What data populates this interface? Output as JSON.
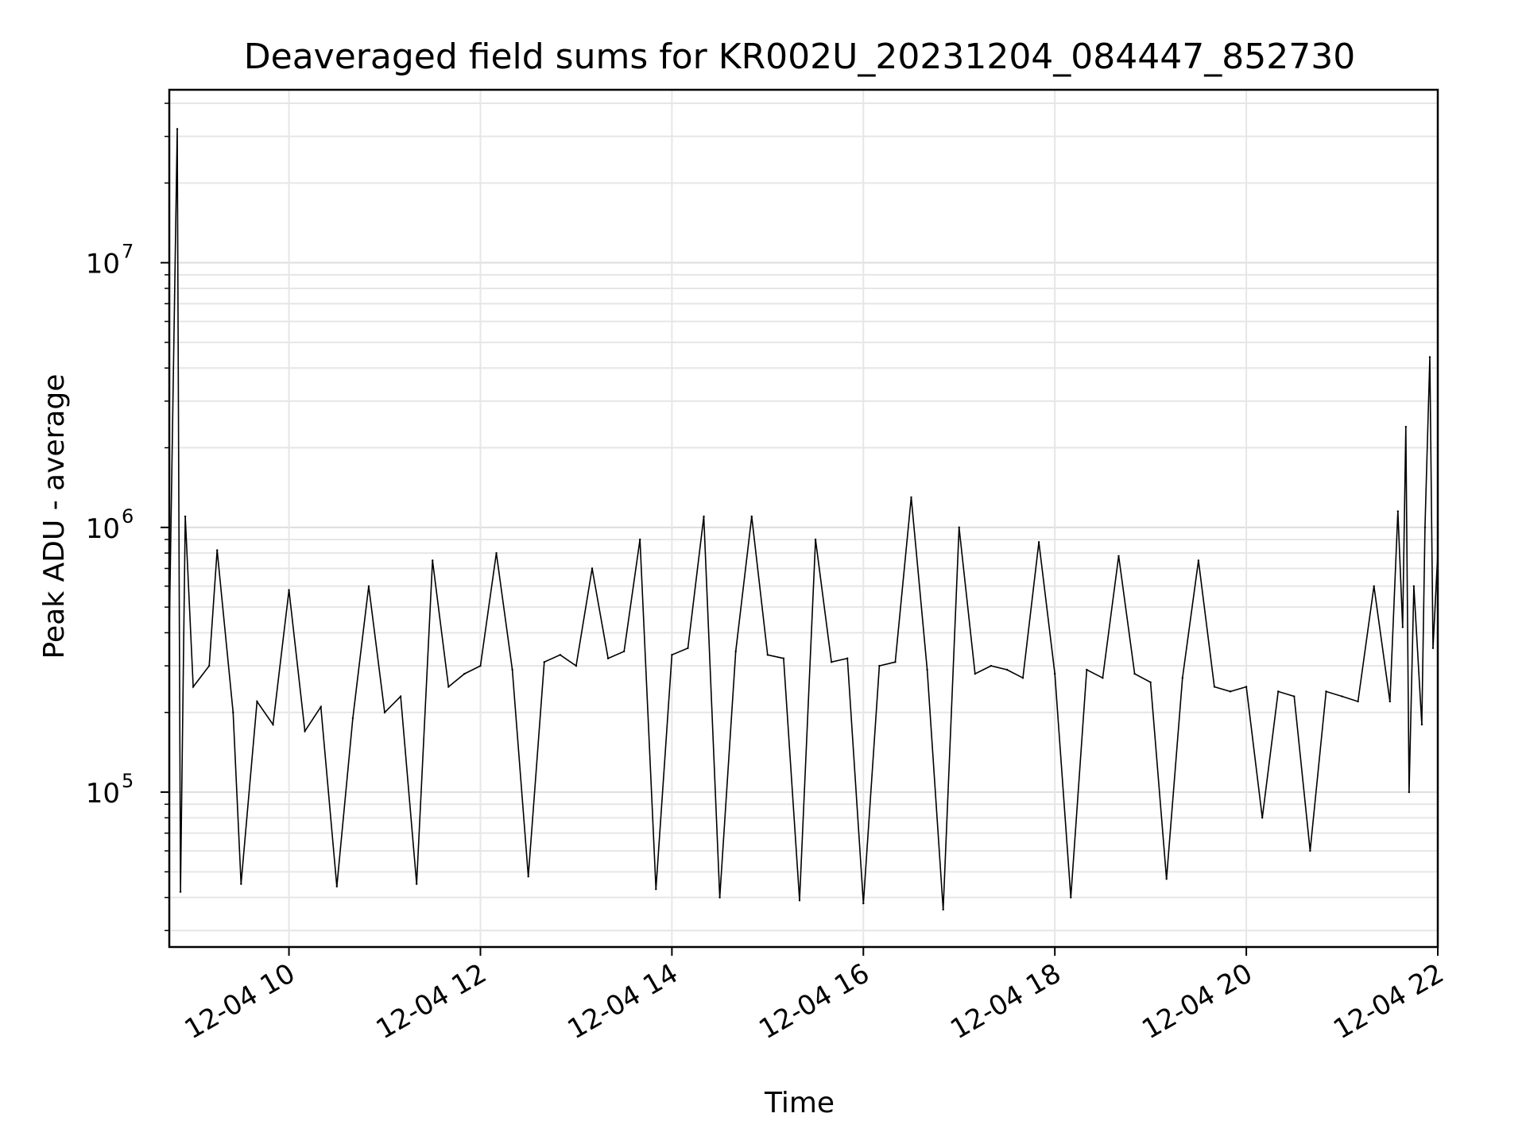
{
  "chart_data": {
    "type": "line",
    "title": "Deaveraged field sums for KR002U_20231204_084447_852730",
    "xlabel": "Time",
    "ylabel": "Peak ADU - average",
    "xlim": [
      "2023-12-04 08:45",
      "2023-12-04 22:00"
    ],
    "ylim": [
      26000,
      45000000
    ],
    "y_scale": "log",
    "grid": true,
    "legend": "none",
    "x_ticks": [
      {
        "value": "2023-12-04 10:00",
        "label": "12-04 10"
      },
      {
        "value": "2023-12-04 12:00",
        "label": "12-04 12"
      },
      {
        "value": "2023-12-04 14:00",
        "label": "12-04 14"
      },
      {
        "value": "2023-12-04 16:00",
        "label": "12-04 16"
      },
      {
        "value": "2023-12-04 18:00",
        "label": "12-04 18"
      },
      {
        "value": "2023-12-04 20:00",
        "label": "12-04 20"
      },
      {
        "value": "2023-12-04 22:00",
        "label": "12-04 22"
      }
    ],
    "y_ticks": [
      {
        "value": 100000,
        "base": "10",
        "exp": "5"
      },
      {
        "value": 1000000,
        "base": "10",
        "exp": "6"
      },
      {
        "value": 10000000,
        "base": "10",
        "exp": "7"
      }
    ],
    "series": [
      {
        "color": "#000000",
        "points": [
          [
            "2023-12-04 08:45",
            400000
          ],
          [
            "2023-12-04 08:50",
            32000000
          ],
          [
            "2023-12-04 08:52",
            42000
          ],
          [
            "2023-12-04 08:55",
            1100000
          ],
          [
            "2023-12-04 09:00",
            250000
          ],
          [
            "2023-12-04 09:10",
            300000
          ],
          [
            "2023-12-04 09:15",
            820000
          ],
          [
            "2023-12-04 09:25",
            200000
          ],
          [
            "2023-12-04 09:30",
            45000
          ],
          [
            "2023-12-04 09:40",
            220000
          ],
          [
            "2023-12-04 09:50",
            180000
          ],
          [
            "2023-12-04 10:00",
            580000
          ],
          [
            "2023-12-04 10:10",
            170000
          ],
          [
            "2023-12-04 10:20",
            210000
          ],
          [
            "2023-12-04 10:30",
            44000
          ],
          [
            "2023-12-04 10:40",
            190000
          ],
          [
            "2023-12-04 10:50",
            600000
          ],
          [
            "2023-12-04 11:00",
            200000
          ],
          [
            "2023-12-04 11:10",
            230000
          ],
          [
            "2023-12-04 11:20",
            45000
          ],
          [
            "2023-12-04 11:30",
            750000
          ],
          [
            "2023-12-04 11:40",
            250000
          ],
          [
            "2023-12-04 11:50",
            280000
          ],
          [
            "2023-12-04 12:00",
            300000
          ],
          [
            "2023-12-04 12:10",
            800000
          ],
          [
            "2023-12-04 12:20",
            290000
          ],
          [
            "2023-12-04 12:30",
            48000
          ],
          [
            "2023-12-04 12:40",
            310000
          ],
          [
            "2023-12-04 12:50",
            330000
          ],
          [
            "2023-12-04 13:00",
            300000
          ],
          [
            "2023-12-04 13:10",
            700000
          ],
          [
            "2023-12-04 13:20",
            320000
          ],
          [
            "2023-12-04 13:30",
            340000
          ],
          [
            "2023-12-04 13:40",
            900000
          ],
          [
            "2023-12-04 13:50",
            43000
          ],
          [
            "2023-12-04 14:00",
            330000
          ],
          [
            "2023-12-04 14:10",
            350000
          ],
          [
            "2023-12-04 14:20",
            1100000
          ],
          [
            "2023-12-04 14:30",
            40000
          ],
          [
            "2023-12-04 14:40",
            340000
          ],
          [
            "2023-12-04 14:50",
            1100000
          ],
          [
            "2023-12-04 15:00",
            330000
          ],
          [
            "2023-12-04 15:10",
            320000
          ],
          [
            "2023-12-04 15:20",
            39000
          ],
          [
            "2023-12-04 15:30",
            900000
          ],
          [
            "2023-12-04 15:40",
            310000
          ],
          [
            "2023-12-04 15:50",
            320000
          ],
          [
            "2023-12-04 16:00",
            38000
          ],
          [
            "2023-12-04 16:10",
            300000
          ],
          [
            "2023-12-04 16:20",
            310000
          ],
          [
            "2023-12-04 16:30",
            1300000
          ],
          [
            "2023-12-04 16:40",
            290000
          ],
          [
            "2023-12-04 16:50",
            36000
          ],
          [
            "2023-12-04 17:00",
            1000000
          ],
          [
            "2023-12-04 17:10",
            280000
          ],
          [
            "2023-12-04 17:20",
            300000
          ],
          [
            "2023-12-04 17:30",
            290000
          ],
          [
            "2023-12-04 17:40",
            270000
          ],
          [
            "2023-12-04 17:50",
            880000
          ],
          [
            "2023-12-04 18:00",
            280000
          ],
          [
            "2023-12-04 18:10",
            40000
          ],
          [
            "2023-12-04 18:20",
            290000
          ],
          [
            "2023-12-04 18:30",
            270000
          ],
          [
            "2023-12-04 18:40",
            780000
          ],
          [
            "2023-12-04 18:50",
            280000
          ],
          [
            "2023-12-04 19:00",
            260000
          ],
          [
            "2023-12-04 19:10",
            47000
          ],
          [
            "2023-12-04 19:20",
            270000
          ],
          [
            "2023-12-04 19:30",
            750000
          ],
          [
            "2023-12-04 19:40",
            250000
          ],
          [
            "2023-12-04 19:50",
            240000
          ],
          [
            "2023-12-04 20:00",
            250000
          ],
          [
            "2023-12-04 20:10",
            80000
          ],
          [
            "2023-12-04 20:20",
            240000
          ],
          [
            "2023-12-04 20:30",
            230000
          ],
          [
            "2023-12-04 20:40",
            60000
          ],
          [
            "2023-12-04 20:50",
            240000
          ],
          [
            "2023-12-04 21:00",
            230000
          ],
          [
            "2023-12-04 21:10",
            220000
          ],
          [
            "2023-12-04 21:20",
            600000
          ],
          [
            "2023-12-04 21:30",
            220000
          ],
          [
            "2023-12-04 21:35",
            1150000
          ],
          [
            "2023-12-04 21:38",
            420000
          ],
          [
            "2023-12-04 21:40",
            2400000
          ],
          [
            "2023-12-04 21:42",
            100000
          ],
          [
            "2023-12-04 21:45",
            600000
          ],
          [
            "2023-12-04 21:50",
            180000
          ],
          [
            "2023-12-04 21:52",
            1000000
          ],
          [
            "2023-12-04 21:55",
            4400000
          ],
          [
            "2023-12-04 21:57",
            350000
          ],
          [
            "2023-12-04 22:00",
            800000
          ]
        ]
      }
    ]
  }
}
